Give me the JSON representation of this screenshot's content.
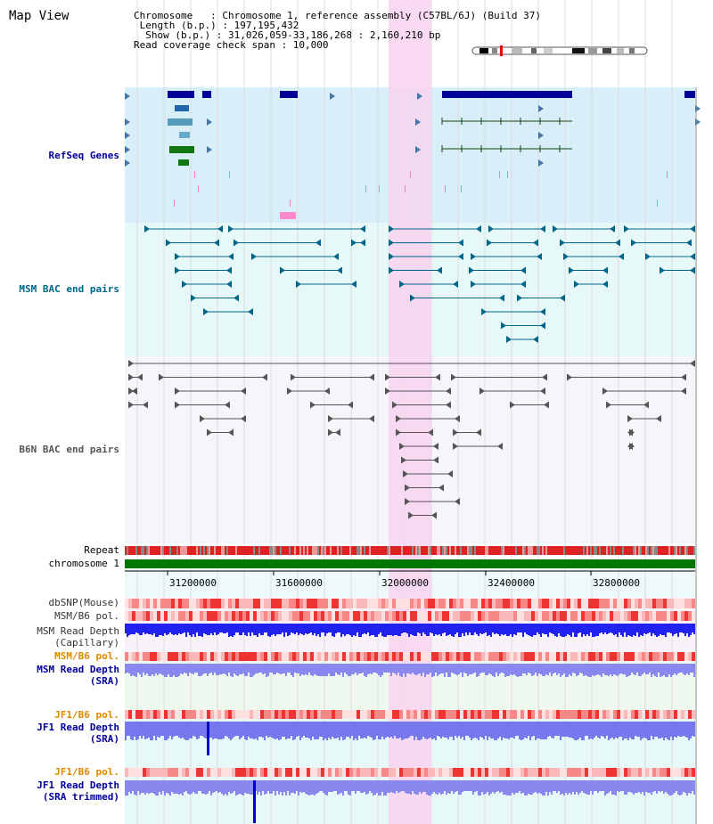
{
  "title": "Map View",
  "header": {
    "chromosome": "Chromosome   : Chromosome 1, reference assembly (C57BL/6J) (Build 37)",
    "length": " Length (b.p.) : 197,195,432",
    "show": "  Show (b.p.) : 31,026,059-33,186,268 : 2,160,210 bp",
    "coverage": "Read coverage check span : 10,000"
  },
  "tracks": {
    "refseq": "RefSeq Genes",
    "msm_bac": "MSM BAC end pairs",
    "b6n_bac": "B6N BAC end pairs",
    "repeat": "Repeat",
    "chromosome": "chromosome 1",
    "dbsnp": "dbSNP(Mouse)",
    "msm_b6_pol_1": "MSM/B6 pol.",
    "msm_depth_cap_1": "MSM Read Depth",
    "msm_depth_cap_2": "(Capillary)",
    "msm_b6_pol_2": "MSM/B6 pol.",
    "msm_depth_sra_1": "MSM Read Depth",
    "msm_depth_sra_2": "(SRA)",
    "jf1_b6_pol_1": "JF1/B6 pol.",
    "jf1_depth_sra_1": "JF1 Read Depth",
    "jf1_depth_sra_2": "(SRA)",
    "jf1_b6_pol_2": "JF1/B6 pol.",
    "jf1_depth_trim_1": "JF1 Read Depth",
    "jf1_depth_trim_2": "(SRA trimmed)"
  },
  "axis": {
    "ticks": [
      "31200000",
      "31600000",
      "32000000",
      "32400000",
      "32800000"
    ]
  },
  "colors": {
    "refseq": "#000099",
    "msm": "#006688",
    "b6n": "#555555",
    "orange": "#dd8800",
    "highlight": "#f8d4f0"
  }
}
